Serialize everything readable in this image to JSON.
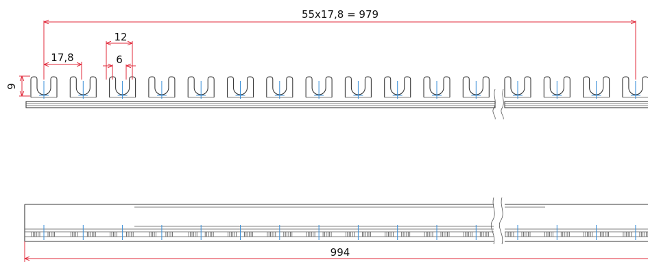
{
  "dimensions": {
    "total_pitch": "55x17,8 = 979",
    "pitch": "17,8",
    "fork_outer": "12",
    "fork_inner": "6",
    "height": "9",
    "overall_length": "994"
  },
  "colors": {
    "outline": "#3a3a3a",
    "dimension": "#e0283a",
    "centerline": "#3a8fd8"
  }
}
